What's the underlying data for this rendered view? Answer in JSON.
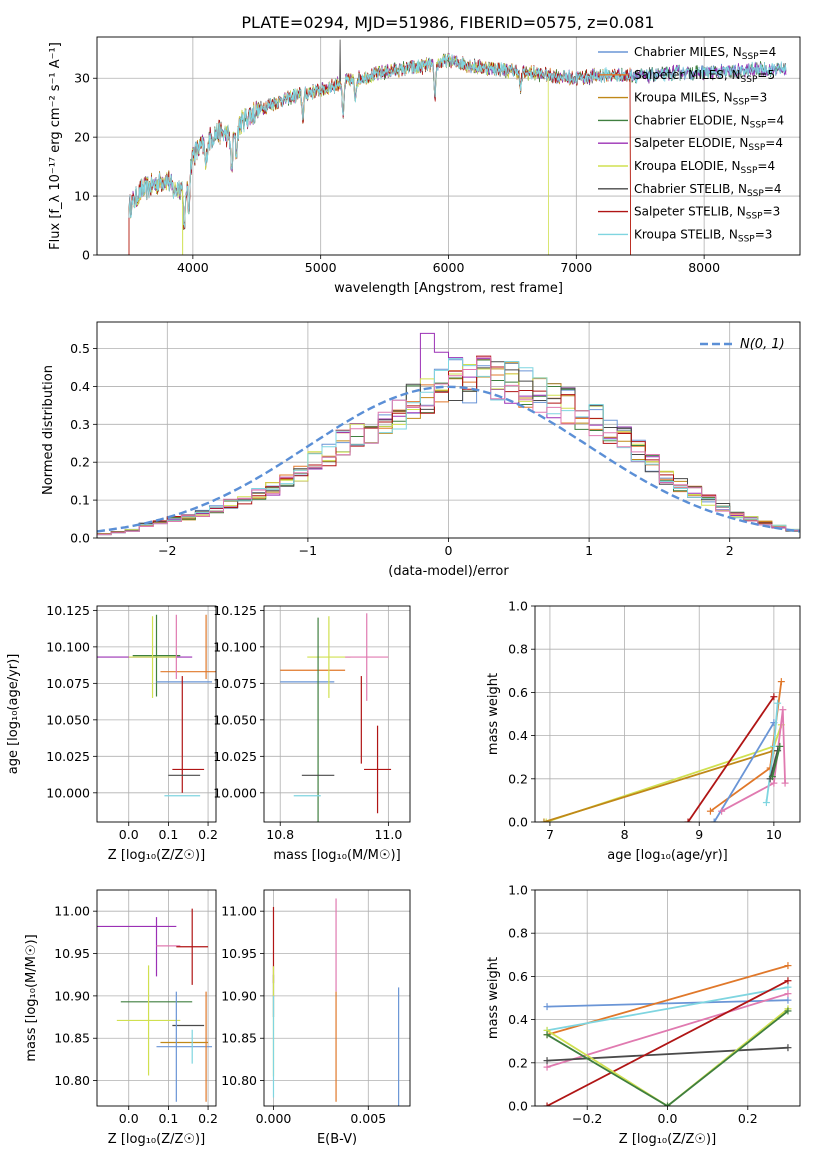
{
  "figure": {
    "title": "PLATE=0294, MJD=51986, FIBERID=0575, z=0.081",
    "colors": {
      "Chabrier MILES": "#6a95d6",
      "Salpeter MILES": "#e0782a",
      "Kroupa MILES": "#c08818",
      "Chabrier ELODIE": "#3f7f3f",
      "Salpeter ELODIE": "#9b30b5",
      "Kroupa ELODIE": "#d0e050",
      "Chabrier STELIB": "#4a4a4a",
      "Salpeter STELIB": "#b01515",
      "Kroupa STELIB": "#7fd5e0",
      "extra_pink": "#e07ab0",
      "normal_curve": "#5b8fd6"
    }
  },
  "chart_data": [
    {
      "id": "spectrum",
      "type": "line",
      "xlabel": "wavelength [Angstrom, rest frame]",
      "ylabel": "Flux [f_λ 10⁻¹⁷ erg cm⁻² s⁻¹ A⁻¹]",
      "xlim": [
        3250,
        8750
      ],
      "ylim": [
        0,
        37
      ],
      "xticks": [
        4000,
        5000,
        6000,
        7000,
        8000
      ],
      "yticks": [
        0,
        10,
        20,
        30
      ],
      "legend_position": "top-right",
      "legend": [
        {
          "label": "Chabrier MILES, N",
          "sub": "SSP",
          "suffix": "=4",
          "color": "#6a95d6"
        },
        {
          "label": "Salpeter MILES, N",
          "sub": "SSP",
          "suffix": "=5",
          "color": "#e0782a"
        },
        {
          "label": "Kroupa MILES, N",
          "sub": "SSP",
          "suffix": "=3",
          "color": "#c08818"
        },
        {
          "label": "Chabrier ELODIE, N",
          "sub": "SSP",
          "suffix": "=4",
          "color": "#3f7f3f"
        },
        {
          "label": "Salpeter ELODIE, N",
          "sub": "SSP",
          "suffix": "=4",
          "color": "#9b30b5"
        },
        {
          "label": "Kroupa ELODIE, N",
          "sub": "SSP",
          "suffix": "=4",
          "color": "#d0e050"
        },
        {
          "label": "Chabrier STELIB, N",
          "sub": "SSP",
          "suffix": "=4",
          "color": "#4a4a4a"
        },
        {
          "label": "Salpeter STELIB, N",
          "sub": "SSP",
          "suffix": "=3",
          "color": "#b01515"
        },
        {
          "label": "Kroupa STELIB, N",
          "sub": "SSP",
          "suffix": "=3",
          "color": "#7fd5e0"
        }
      ],
      "continuum": {
        "x": [
          3500,
          3600,
          3700,
          3800,
          3850,
          3950,
          4000,
          4100,
          4200,
          4300,
          4400,
          4500,
          4600,
          4800,
          5000,
          5200,
          5400,
          5600,
          5800,
          6000,
          6200,
          6400,
          6600,
          6800,
          7000,
          7200,
          7400,
          7600,
          7800,
          8000,
          8200,
          8400,
          8600
        ],
        "y": [
          8,
          11,
          12,
          13,
          11,
          12,
          17,
          19,
          21,
          20,
          23,
          24.5,
          25.5,
          27,
          28,
          29.5,
          30.5,
          31.5,
          32,
          33,
          32,
          31.5,
          31,
          30.5,
          30,
          30.5,
          30.5,
          30.5,
          31,
          31,
          31,
          31.5,
          31.5
        ]
      },
      "absorption_lines": [
        {
          "x": 3934,
          "depth": 8
        },
        {
          "x": 3968,
          "depth": 6
        },
        {
          "x": 4102,
          "depth": 4
        },
        {
          "x": 4304,
          "depth": 6
        },
        {
          "x": 4340,
          "depth": 4
        },
        {
          "x": 4861,
          "depth": 4
        },
        {
          "x": 5175,
          "depth": 6
        },
        {
          "x": 5270,
          "depth": 3
        },
        {
          "x": 5893,
          "depth": 6
        },
        {
          "x": 6563,
          "depth": 3
        }
      ],
      "spikes": [
        {
          "x": 5150,
          "top": 36.5
        },
        {
          "x": 6780,
          "bottom": 0
        },
        {
          "x": 7430,
          "bottom": 0
        }
      ]
    },
    {
      "id": "residuals",
      "type": "bar",
      "xlabel": "(data-model)/error",
      "ylabel": "Normed distribution",
      "xlim": [
        -2.5,
        2.5
      ],
      "ylim": [
        0,
        0.57
      ],
      "xticks": [
        -2,
        -1,
        0,
        1,
        2
      ],
      "yticks": [
        0.0,
        0.1,
        0.2,
        0.3,
        0.4,
        0.5
      ],
      "bin_edges_start": -2.5,
      "bin_width": 0.1,
      "bins": 50,
      "legend_position": "top-right",
      "legend": [
        {
          "label": "N(0, 1)",
          "style": "dashed",
          "color": "#5b8fd6"
        }
      ],
      "mean_profile": [
        0.01,
        0.015,
        0.02,
        0.035,
        0.04,
        0.05,
        0.055,
        0.065,
        0.075,
        0.09,
        0.1,
        0.115,
        0.13,
        0.15,
        0.17,
        0.2,
        0.22,
        0.25,
        0.27,
        0.29,
        0.31,
        0.33,
        0.36,
        0.37,
        0.4,
        0.42,
        0.41,
        0.42,
        0.42,
        0.41,
        0.4,
        0.38,
        0.36,
        0.35,
        0.33,
        0.31,
        0.28,
        0.26,
        0.23,
        0.2,
        0.16,
        0.14,
        0.12,
        0.1,
        0.08,
        0.06,
        0.05,
        0.04,
        0.03,
        0.02
      ]
    },
    {
      "id": "age-vs-Z",
      "type": "scatter",
      "xlabel": "Z [log₁₀(Z/Z☉)]",
      "ylabel": "age  [log₁₀(age/yr)]",
      "xlim": [
        -0.08,
        0.22
      ],
      "ylim": [
        9.98,
        10.128
      ],
      "xticks": [
        0.0,
        0.1,
        0.2
      ],
      "yticks": [
        10.0,
        10.025,
        10.05,
        10.075,
        10.1,
        10.125
      ],
      "points": [
        {
          "x": 0.04,
          "y": 10.093,
          "xerr": 0.12,
          "yerr": 0.0,
          "color": "#9b30b5"
        },
        {
          "x": 0.07,
          "y": 10.094,
          "xerr": 0.06,
          "yerr": 0.028,
          "color": "#3f7f3f"
        },
        {
          "x": 0.06,
          "y": 10.093,
          "xerr": 0.06,
          "yerr": 0.028,
          "color": "#d0e050"
        },
        {
          "x": 0.15,
          "y": 10.083,
          "xerr": 0.07,
          "yerr": 0.0,
          "color": "#e0782a"
        },
        {
          "x": 0.14,
          "y": 10.076,
          "xerr": 0.07,
          "yerr": 0.0,
          "color": "#6a95d6"
        },
        {
          "x": 0.135,
          "y": 10.04,
          "xerr": 0.0,
          "yerr": 0.04,
          "color": "#b01515"
        },
        {
          "x": 0.15,
          "y": 10.016,
          "xerr": 0.04,
          "yerr": 0.0,
          "color": "#b01515"
        },
        {
          "x": 0.14,
          "y": 10.012,
          "xerr": 0.04,
          "yerr": 0.0,
          "color": "#4a4a4a"
        },
        {
          "x": 0.135,
          "y": 9.998,
          "xerr": 0.045,
          "yerr": 0.0,
          "color": "#7fd5e0"
        },
        {
          "x": 0.12,
          "y": 10.1,
          "xerr": 0.0,
          "yerr": 0.022,
          "color": "#e07ab0"
        },
        {
          "x": 0.195,
          "y": 10.1,
          "xerr": 0.0,
          "yerr": 0.022,
          "color": "#e0782a"
        }
      ]
    },
    {
      "id": "age-vs-mass",
      "type": "scatter",
      "xlabel": "mass [log₁₀(M/M☉)]",
      "ylabel": "",
      "xlim": [
        10.77,
        11.04
      ],
      "ylim": [
        9.98,
        10.128
      ],
      "xticks": [
        10.8,
        11.0
      ],
      "yticks": [
        10.0,
        10.025,
        10.05,
        10.075,
        10.1,
        10.125
      ],
      "points": [
        {
          "x": 10.86,
          "y": 10.084,
          "xerr": 0.06,
          "yerr": 0.0,
          "color": "#e0782a"
        },
        {
          "x": 10.85,
          "y": 10.076,
          "xerr": 0.05,
          "yerr": 0.0,
          "color": "#6a95d6"
        },
        {
          "x": 10.89,
          "y": 10.093,
          "xerr": 0.04,
          "yerr": 0.028,
          "color": "#d0e050"
        },
        {
          "x": 10.96,
          "y": 10.093,
          "xerr": 0.04,
          "yerr": 0.03,
          "color": "#e07ab0"
        },
        {
          "x": 10.87,
          "y": 10.05,
          "xerr": 0.0,
          "yerr": 0.07,
          "color": "#3f7f3f"
        },
        {
          "x": 10.95,
          "y": 10.05,
          "xerr": 0.0,
          "yerr": 0.03,
          "color": "#b01515"
        },
        {
          "x": 10.98,
          "y": 10.016,
          "xerr": 0.025,
          "yerr": 0.03,
          "color": "#b01515"
        },
        {
          "x": 10.87,
          "y": 10.012,
          "xerr": 0.03,
          "yerr": 0.0,
          "color": "#4a4a4a"
        },
        {
          "x": 10.85,
          "y": 9.998,
          "xerr": 0.025,
          "yerr": 0.0,
          "color": "#7fd5e0"
        }
      ]
    },
    {
      "id": "weight-vs-age",
      "type": "line",
      "xlabel": "age  [log₁₀(age/yr)]",
      "ylabel": "mass weight",
      "xlim": [
        6.8,
        10.35
      ],
      "ylim": [
        0,
        1.0
      ],
      "xticks": [
        7,
        8,
        9,
        10
      ],
      "yticks": [
        0.0,
        0.2,
        0.4,
        0.6,
        0.8,
        1.0
      ],
      "series": [
        {
          "color": "#d0e050",
          "points": [
            [
              6.95,
              0.0
            ],
            [
              10.0,
              0.35
            ],
            [
              10.1,
              0.45
            ]
          ]
        },
        {
          "color": "#c08818",
          "points": [
            [
              6.92,
              0.0
            ],
            [
              10.0,
              0.33
            ]
          ]
        },
        {
          "color": "#b01515",
          "points": [
            [
              8.85,
              0.0
            ],
            [
              10.0,
              0.58
            ]
          ]
        },
        {
          "color": "#e0782a",
          "points": [
            [
              9.15,
              0.05
            ],
            [
              9.95,
              0.25
            ],
            [
              10.1,
              0.65
            ]
          ]
        },
        {
          "color": "#6a95d6",
          "points": [
            [
              9.2,
              0.0
            ],
            [
              10.0,
              0.46
            ]
          ]
        },
        {
          "color": "#e07ab0",
          "points": [
            [
              9.3,
              0.05
            ],
            [
              10.0,
              0.18
            ],
            [
              10.12,
              0.52
            ],
            [
              10.15,
              0.18
            ]
          ]
        },
        {
          "color": "#7fd5e0",
          "points": [
            [
              9.9,
              0.09
            ],
            [
              10.0,
              0.35
            ],
            [
              10.05,
              0.55
            ]
          ]
        },
        {
          "color": "#4a4a4a",
          "points": [
            [
              9.95,
              0.2
            ],
            [
              10.05,
              0.33
            ]
          ]
        },
        {
          "color": "#3f7f3f",
          "points": [
            [
              9.98,
              0.21
            ],
            [
              10.08,
              0.35
            ]
          ]
        }
      ]
    },
    {
      "id": "mass-vs-Z",
      "type": "scatter",
      "xlabel": "Z [log₁₀(Z/Z☉)]",
      "ylabel": "mass [log₁₀(M/M☉)]",
      "xlim": [
        -0.08,
        0.22
      ],
      "ylim": [
        10.77,
        11.025
      ],
      "xticks": [
        0.0,
        0.1,
        0.2
      ],
      "yticks": [
        10.8,
        10.85,
        10.9,
        10.95,
        11.0
      ],
      "points": [
        {
          "x": 0.02,
          "y": 10.982,
          "xerr": 0.1,
          "yerr": 0.0,
          "color": "#9b30b5"
        },
        {
          "x": 0.07,
          "y": 10.958,
          "xerr": 0.0,
          "yerr": 0.035,
          "color": "#9b30b5"
        },
        {
          "x": 0.1,
          "y": 10.959,
          "xerr": 0.03,
          "yerr": 0.0,
          "color": "#e07ab0"
        },
        {
          "x": 0.16,
          "y": 10.958,
          "xerr": 0.04,
          "yerr": 0.045,
          "color": "#b01515"
        },
        {
          "x": 0.07,
          "y": 10.893,
          "xerr": 0.09,
          "yerr": 0.0,
          "color": "#3f7f3f"
        },
        {
          "x": 0.05,
          "y": 10.871,
          "xerr": 0.08,
          "yerr": 0.065,
          "color": "#d0e050"
        },
        {
          "x": 0.15,
          "y": 10.865,
          "xerr": 0.04,
          "yerr": 0.0,
          "color": "#4a4a4a"
        },
        {
          "x": 0.14,
          "y": 10.845,
          "xerr": 0.06,
          "yerr": 0.0,
          "color": "#c08818"
        },
        {
          "x": 0.14,
          "y": 10.84,
          "xerr": 0.07,
          "yerr": 0.0,
          "color": "#6a95d6"
        },
        {
          "x": 0.12,
          "y": 10.84,
          "xerr": 0.0,
          "yerr": 0.065,
          "color": "#6a95d6"
        },
        {
          "x": 0.195,
          "y": 10.84,
          "xerr": 0.0,
          "yerr": 0.065,
          "color": "#e0782a"
        },
        {
          "x": 0.16,
          "y": 10.84,
          "xerr": 0.0,
          "yerr": 0.02,
          "color": "#7fd5e0"
        }
      ]
    },
    {
      "id": "mass-vs-EBV",
      "type": "scatter",
      "xlabel": "E(B-V)",
      "ylabel": "",
      "xlim": [
        -0.0005,
        0.0072
      ],
      "ylim": [
        10.77,
        11.025
      ],
      "xticks": [
        0.0,
        0.005
      ],
      "ytick_labels_x": [
        0.0,
        0.005
      ],
      "yticks": [
        10.8,
        10.85,
        10.9,
        10.95,
        11.0
      ],
      "points": [
        {
          "x": 0.0,
          "y": 10.96,
          "xerr": 0.0,
          "yerr": 0.045,
          "color": "#b01515"
        },
        {
          "x": 0.0,
          "y": 10.9,
          "xerr": 0.0,
          "yerr": 0.025,
          "color": "#4a4a4a"
        },
        {
          "x": 0.0,
          "y": 10.87,
          "xerr": 0.0,
          "yerr": 0.065,
          "color": "#d0e050"
        },
        {
          "x": 0.0,
          "y": 10.84,
          "xerr": 0.0,
          "yerr": 0.06,
          "color": "#7fd5e0"
        },
        {
          "x": 0.0033,
          "y": 10.96,
          "xerr": 0.0,
          "yerr": 0.055,
          "color": "#e07ab0"
        },
        {
          "x": 0.0033,
          "y": 10.84,
          "xerr": 0.0,
          "yerr": 0.065,
          "color": "#e0782a"
        },
        {
          "x": 0.0066,
          "y": 10.84,
          "xerr": 0.0,
          "yerr": 0.07,
          "color": "#6a95d6"
        }
      ]
    },
    {
      "id": "weight-vs-Z",
      "type": "line",
      "xlabel": "Z [log₁₀(Z/Z☉)]",
      "ylabel": "mass weight",
      "xlim": [
        -0.33,
        0.33
      ],
      "ylim": [
        0,
        1.0
      ],
      "xticks": [
        -0.2,
        0.0,
        0.2
      ],
      "yticks": [
        0.0,
        0.2,
        0.4,
        0.6,
        0.8,
        1.0
      ],
      "series": [
        {
          "color": "#6a95d6",
          "points": [
            [
              -0.3,
              0.46
            ],
            [
              0.3,
              0.49
            ]
          ]
        },
        {
          "color": "#e0782a",
          "points": [
            [
              -0.3,
              0.33
            ],
            [
              0.3,
              0.65
            ]
          ]
        },
        {
          "color": "#7fd5e0",
          "points": [
            [
              -0.3,
              0.35
            ],
            [
              0.3,
              0.55
            ]
          ]
        },
        {
          "color": "#e07ab0",
          "points": [
            [
              -0.3,
              0.18
            ],
            [
              0.3,
              0.52
            ]
          ]
        },
        {
          "color": "#4a4a4a",
          "points": [
            [
              -0.3,
              0.21
            ],
            [
              0.3,
              0.27
            ]
          ]
        },
        {
          "color": "#b01515",
          "points": [
            [
              -0.3,
              0.0
            ],
            [
              0.3,
              0.58
            ]
          ]
        },
        {
          "color": "#d0e050",
          "points": [
            [
              -0.3,
              0.35
            ],
            [
              0.0,
              0.0
            ],
            [
              0.3,
              0.45
            ]
          ]
        },
        {
          "color": "#3f7f3f",
          "points": [
            [
              -0.3,
              0.33
            ],
            [
              0.0,
              0.0
            ],
            [
              0.3,
              0.44
            ]
          ]
        }
      ]
    }
  ]
}
